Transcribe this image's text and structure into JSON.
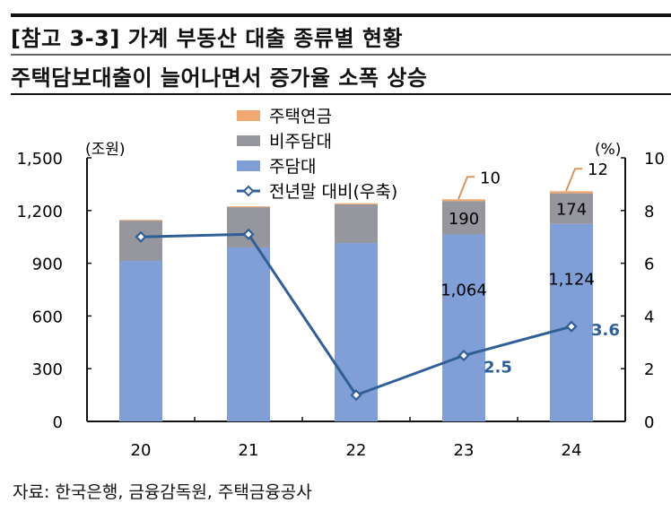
{
  "header": {
    "title": "[참고 3-3] 가계 부동산 대출 종류별 현황",
    "subtitle": "주택담보대출이 늘어나면서 증가율 소폭 상승"
  },
  "source": "자료: 한국은행, 금융감독원, 주택금융공사",
  "chart_data": {
    "type": "bar",
    "stacked": true,
    "categories": [
      "20",
      "21",
      "22",
      "23",
      "24"
    ],
    "left_axis": {
      "unit_label": "(조원)",
      "ylim": [
        0,
        1500
      ],
      "ticks": [
        0,
        300,
        600,
        900,
        1200,
        1500
      ],
      "tick_labels": [
        "0",
        "300",
        "600",
        "900",
        "1,200",
        "1,500"
      ]
    },
    "right_axis": {
      "unit_label": "(%)",
      "ylim": [
        0,
        10
      ],
      "ticks": [
        0,
        2,
        4,
        6,
        8,
        10
      ],
      "tick_labels": [
        "0",
        "2",
        "4",
        "6",
        "8",
        "10"
      ]
    },
    "series": [
      {
        "name": "주담대",
        "color": "#7f9fd6",
        "values": [
          913,
          990,
          1015,
          1064,
          1124
        ],
        "labels": [
          "",
          "",
          "",
          "1,064",
          "1,124"
        ]
      },
      {
        "name": "비주담대",
        "color": "#96969e",
        "values": [
          230,
          229,
          220,
          190,
          174
        ],
        "labels": [
          "",
          "",
          "",
          "190",
          "174"
        ]
      },
      {
        "name": "주택연금",
        "color": "#f0a870",
        "values": [
          4,
          5,
          6,
          10,
          12
        ],
        "labels": [
          "",
          "",
          "",
          "10",
          "12"
        ]
      },
      {
        "name": "전년말 대비(우축)",
        "type": "line",
        "axis": "right",
        "color": "#2f5f96",
        "values": [
          7.0,
          7.1,
          1.0,
          2.5,
          3.6
        ],
        "labels": [
          "",
          "",
          "",
          "2.5",
          "3.6"
        ]
      }
    ],
    "legend": {
      "placement": "top-center",
      "order": [
        "주택연금",
        "비주담대",
        "주담대",
        "전년말 대비(우축)"
      ]
    },
    "grid": false
  }
}
